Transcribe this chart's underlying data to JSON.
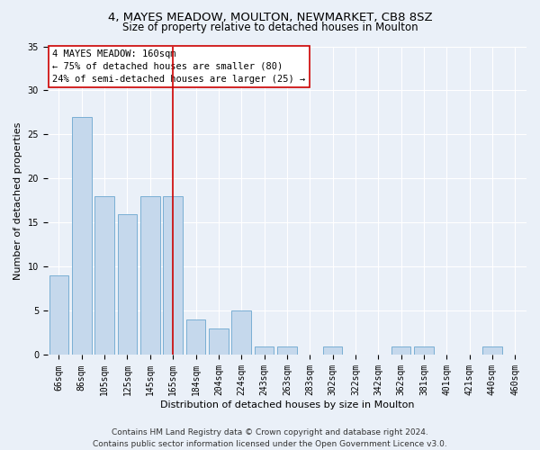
{
  "title1": "4, MAYES MEADOW, MOULTON, NEWMARKET, CB8 8SZ",
  "title2": "Size of property relative to detached houses in Moulton",
  "xlabel": "Distribution of detached houses by size in Moulton",
  "ylabel": "Number of detached properties",
  "categories": [
    "66sqm",
    "86sqm",
    "105sqm",
    "125sqm",
    "145sqm",
    "165sqm",
    "184sqm",
    "204sqm",
    "224sqm",
    "243sqm",
    "263sqm",
    "283sqm",
    "302sqm",
    "322sqm",
    "342sqm",
    "362sqm",
    "381sqm",
    "401sqm",
    "421sqm",
    "440sqm",
    "460sqm"
  ],
  "values": [
    9,
    27,
    18,
    16,
    18,
    18,
    4,
    3,
    5,
    1,
    1,
    0,
    1,
    0,
    0,
    1,
    1,
    0,
    0,
    1,
    0
  ],
  "bar_color": "#c5d8ec",
  "bar_edge_color": "#7aafd4",
  "vline_x": 5,
  "vline_color": "#cc0000",
  "annotation_text": "4 MAYES MEADOW: 160sqm\n← 75% of detached houses are smaller (80)\n24% of semi-detached houses are larger (25) →",
  "annotation_box_color": "#ffffff",
  "annotation_box_edge_color": "#cc0000",
  "ylim": [
    0,
    35
  ],
  "yticks": [
    0,
    5,
    10,
    15,
    20,
    25,
    30,
    35
  ],
  "bg_color": "#eaf0f8",
  "plot_bg_color": "#eaf0f8",
  "grid_color": "#ffffff",
  "footer1": "Contains HM Land Registry data © Crown copyright and database right 2024.",
  "footer2": "Contains public sector information licensed under the Open Government Licence v3.0.",
  "title1_fontsize": 9.5,
  "title2_fontsize": 8.5,
  "xlabel_fontsize": 8,
  "ylabel_fontsize": 8,
  "tick_fontsize": 7,
  "annotation_fontsize": 7.5,
  "footer_fontsize": 6.5
}
